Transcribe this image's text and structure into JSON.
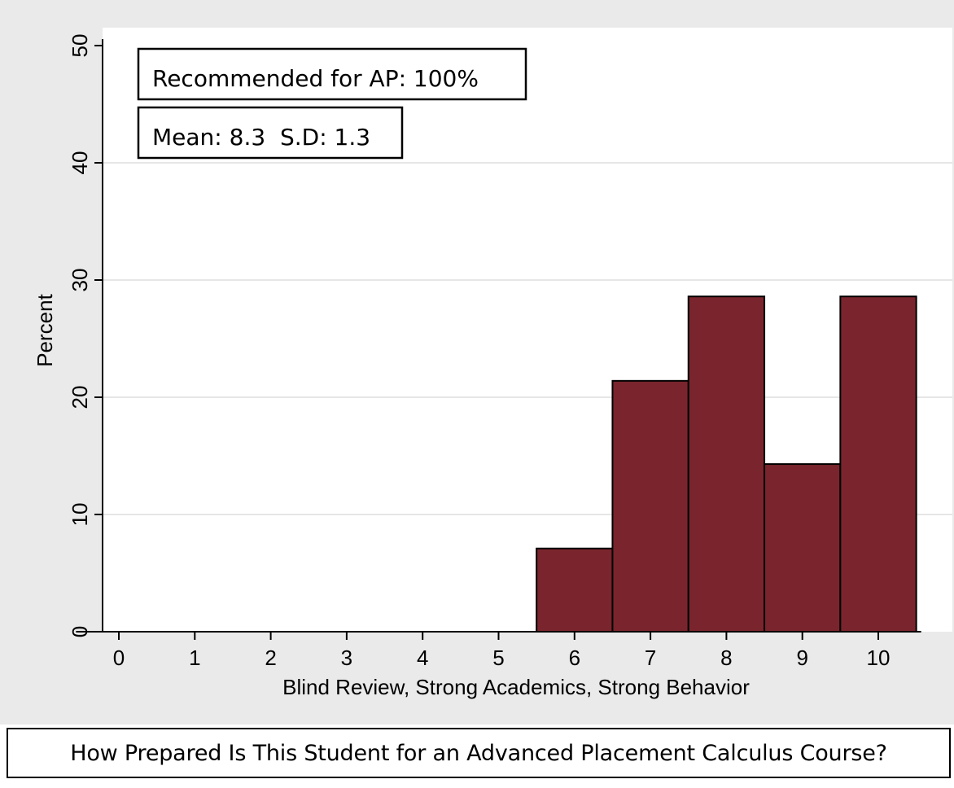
{
  "chart_data": {
    "type": "bar",
    "xlabel": "Blind Review, Strong Academics, Strong Behavior",
    "ylabel": "Percent",
    "xlim": [
      -0.5,
      10.5
    ],
    "ylim": [
      0,
      50
    ],
    "x_ticks": [
      0,
      1,
      2,
      3,
      4,
      5,
      6,
      7,
      8,
      9,
      10
    ],
    "y_ticks": [
      0,
      10,
      20,
      30,
      40,
      50
    ],
    "categories": [
      "6",
      "7",
      "8",
      "9",
      "10"
    ],
    "x": [
      6,
      7,
      8,
      9,
      10
    ],
    "values": [
      7.1,
      21.4,
      28.6,
      14.3,
      28.6
    ],
    "grid": true,
    "annotations": [
      "Recommended for AP: 100%",
      "Mean: 8.3  S.D: 1.3"
    ]
  },
  "colors": {
    "bar_fill": "#7a252d",
    "background": "#eaeaea",
    "plot_area": "#ffffff",
    "grid": "#e6e6e6"
  },
  "question_label": "How Prepared Is This Student for an Advanced Placement Calculus Course?"
}
